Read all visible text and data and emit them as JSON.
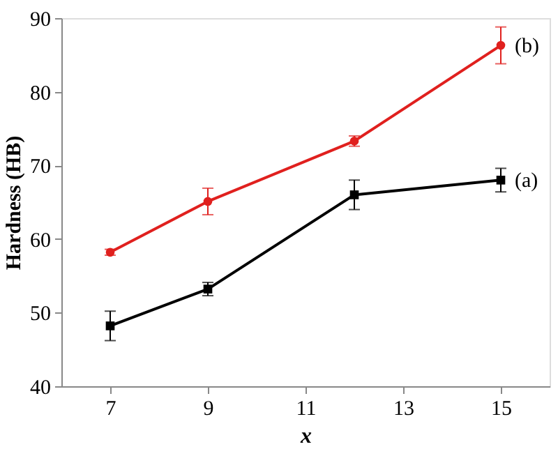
{
  "chart_data": {
    "type": "line",
    "xlabel": "x",
    "ylabel": "Hardness (HB)",
    "x": [
      7,
      9,
      12,
      15
    ],
    "xlim": [
      6,
      16
    ],
    "xticks": [
      7,
      9,
      11,
      13,
      15
    ],
    "ylim": [
      40,
      90
    ],
    "yticks": [
      40,
      50,
      60,
      70,
      80,
      90
    ],
    "grid": false,
    "line_style": "solid",
    "series": [
      {
        "name": "(a)",
        "color": "#000000",
        "marker": "square",
        "values": [
          48.2,
          53.2,
          66.0,
          68.0
        ],
        "errors": [
          2.0,
          0.9,
          2.0,
          1.6
        ]
      },
      {
        "name": "(b)",
        "color": "#e0201e",
        "marker": "circle",
        "values": [
          58.2,
          65.1,
          73.3,
          86.3
        ],
        "errors": [
          0.4,
          1.8,
          0.7,
          2.5
        ]
      }
    ]
  }
}
